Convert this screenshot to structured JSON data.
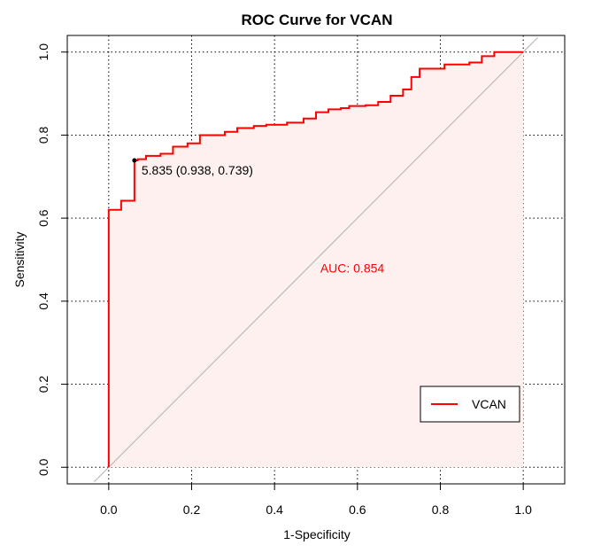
{
  "chart_data": {
    "type": "line",
    "title": "ROC Curve for VCAN",
    "xlabel": "1-Specificity",
    "ylabel": "Sensitivity",
    "xlim": [
      -0.1,
      1.1
    ],
    "ylim": [
      -0.04,
      1.04
    ],
    "x_ticks": [
      0.0,
      0.2,
      0.4,
      0.6,
      0.8,
      1.0
    ],
    "x_tick_labels": [
      "0.0",
      "0.2",
      "0.4",
      "0.6",
      "0.8",
      "1.0"
    ],
    "y_ticks": [
      0.0,
      0.2,
      0.4,
      0.6,
      0.8,
      1.0
    ],
    "y_tick_labels": [
      "0.0",
      "0.2",
      "0.4",
      "0.6",
      "0.8",
      "1.0"
    ],
    "grid": true,
    "legend_position": "bottom-right",
    "series": [
      {
        "name": "VCAN",
        "color": "#ff0000",
        "fill_color": "#fff0f0",
        "x": [
          0.0,
          0.0,
          0.03,
          0.03,
          0.062,
          0.062,
          0.07,
          0.07,
          0.09,
          0.09,
          0.125,
          0.125,
          0.155,
          0.155,
          0.19,
          0.19,
          0.22,
          0.22,
          0.28,
          0.28,
          0.31,
          0.31,
          0.35,
          0.35,
          0.38,
          0.38,
          0.43,
          0.43,
          0.47,
          0.47,
          0.5,
          0.5,
          0.53,
          0.53,
          0.56,
          0.56,
          0.58,
          0.58,
          0.62,
          0.62,
          0.65,
          0.65,
          0.68,
          0.68,
          0.71,
          0.71,
          0.73,
          0.73,
          0.75,
          0.75,
          0.81,
          0.81,
          0.87,
          0.87,
          0.9,
          0.9,
          0.93,
          0.93,
          1.0
        ],
        "y": [
          0.0,
          0.62,
          0.62,
          0.642,
          0.642,
          0.739,
          0.739,
          0.742,
          0.742,
          0.75,
          0.75,
          0.755,
          0.755,
          0.772,
          0.772,
          0.78,
          0.78,
          0.8,
          0.8,
          0.808,
          0.808,
          0.817,
          0.817,
          0.822,
          0.822,
          0.825,
          0.825,
          0.83,
          0.83,
          0.84,
          0.84,
          0.855,
          0.855,
          0.862,
          0.862,
          0.865,
          0.865,
          0.87,
          0.87,
          0.872,
          0.872,
          0.88,
          0.88,
          0.895,
          0.895,
          0.91,
          0.91,
          0.94,
          0.94,
          0.96,
          0.96,
          0.97,
          0.97,
          0.975,
          0.975,
          0.99,
          0.99,
          1.0,
          1.0
        ]
      }
    ],
    "reference_line": {
      "from": [
        0,
        0
      ],
      "to": [
        1,
        1
      ],
      "color": "#b0b0b0"
    },
    "threshold_point": {
      "x": 0.062,
      "y": 0.739,
      "label": "5.835 (0.938, 0.739)",
      "color": "#000000"
    },
    "auc_annotation": {
      "text": "AUC: 0.854",
      "x": 0.5,
      "y": 0.48,
      "color": "#ff0000"
    }
  }
}
